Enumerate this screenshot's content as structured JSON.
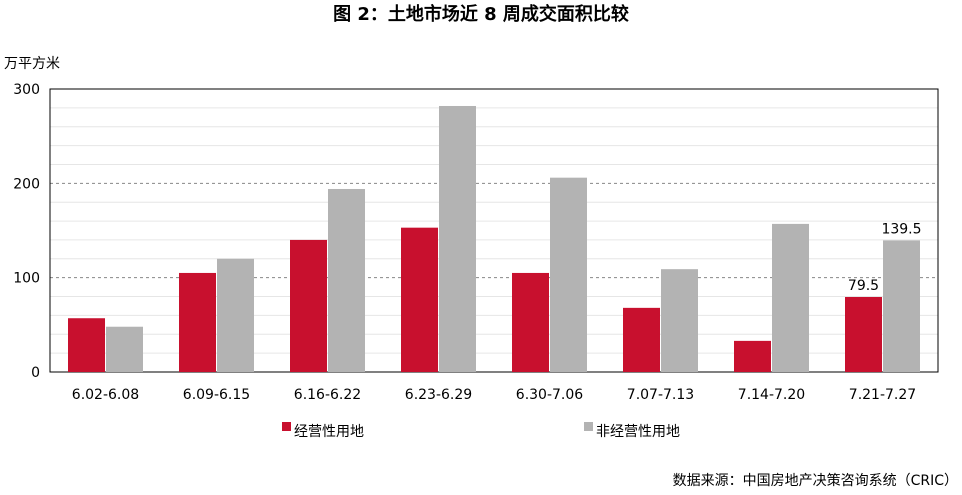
{
  "chart_data": {
    "type": "bar",
    "title": "图 2：土地市场近 8 周成交面积比较",
    "ylabel": "万平方米",
    "xlabel": "",
    "categories": [
      "6.02-6.08",
      "6.09-6.15",
      "6.16-6.22",
      "6.23-6.29",
      "6.30-7.06",
      "7.07-7.13",
      "7.14-7.20",
      "7.21-7.27"
    ],
    "series": [
      {
        "name": "经营性用地",
        "color": "#c8102e",
        "values": [
          57,
          105,
          140,
          153,
          105,
          68,
          33,
          79.5
        ]
      },
      {
        "name": "非经营性用地",
        "color": "#b3b3b3",
        "values": [
          48,
          120,
          194,
          282,
          206,
          109,
          157,
          139.5
        ]
      }
    ],
    "data_labels": [
      {
        "series": 0,
        "index": 7,
        "text": "79.5"
      },
      {
        "series": 1,
        "index": 7,
        "text": "139.5"
      }
    ],
    "ylim": [
      0,
      300
    ],
    "yticks": [
      0,
      100,
      200,
      300
    ],
    "grid": true,
    "legend_position": "bottom"
  },
  "source": "数据来源：中国房地产决策咨询系统（CRIC）"
}
